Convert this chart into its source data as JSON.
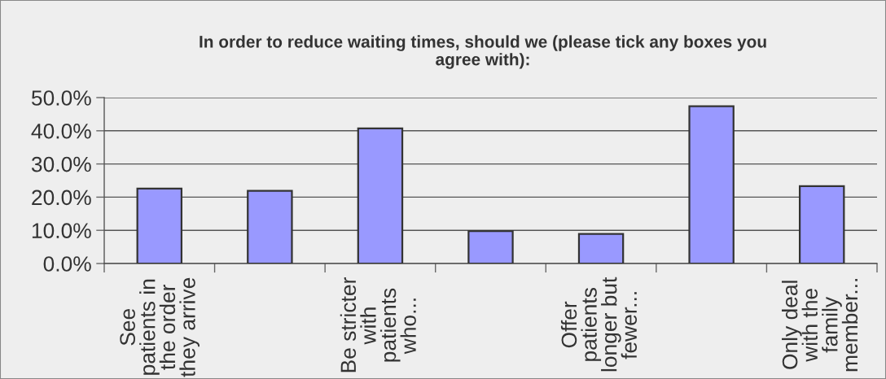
{
  "chart_data": {
    "type": "bar",
    "title": "In order to reduce waiting times, should we (please tick any boxes you\nagree with):",
    "categories": [
      "See\npatients in\nthe order\nthey arrive",
      null,
      "Be stricter\nwith\npatients\nwho...",
      null,
      "Offer\npatients\nlonger but\nfewer...",
      null,
      "Only deal\nwith the\nfamily\nmember..."
    ],
    "values": [
      22.6,
      21.9,
      40.7,
      9.8,
      8.9,
      47.4,
      23.3
    ],
    "color": "#9999ff",
    "ylim": [
      0,
      50
    ],
    "yticks": [
      {
        "value": 0,
        "label": "0.0%"
      },
      {
        "value": 10,
        "label": "10.0%"
      },
      {
        "value": 20,
        "label": "20.0%"
      },
      {
        "value": 30,
        "label": "30.0%"
      },
      {
        "value": 40,
        "label": "40.0%"
      },
      {
        "value": 50,
        "label": "50.0%"
      }
    ],
    "grid": "y"
  }
}
